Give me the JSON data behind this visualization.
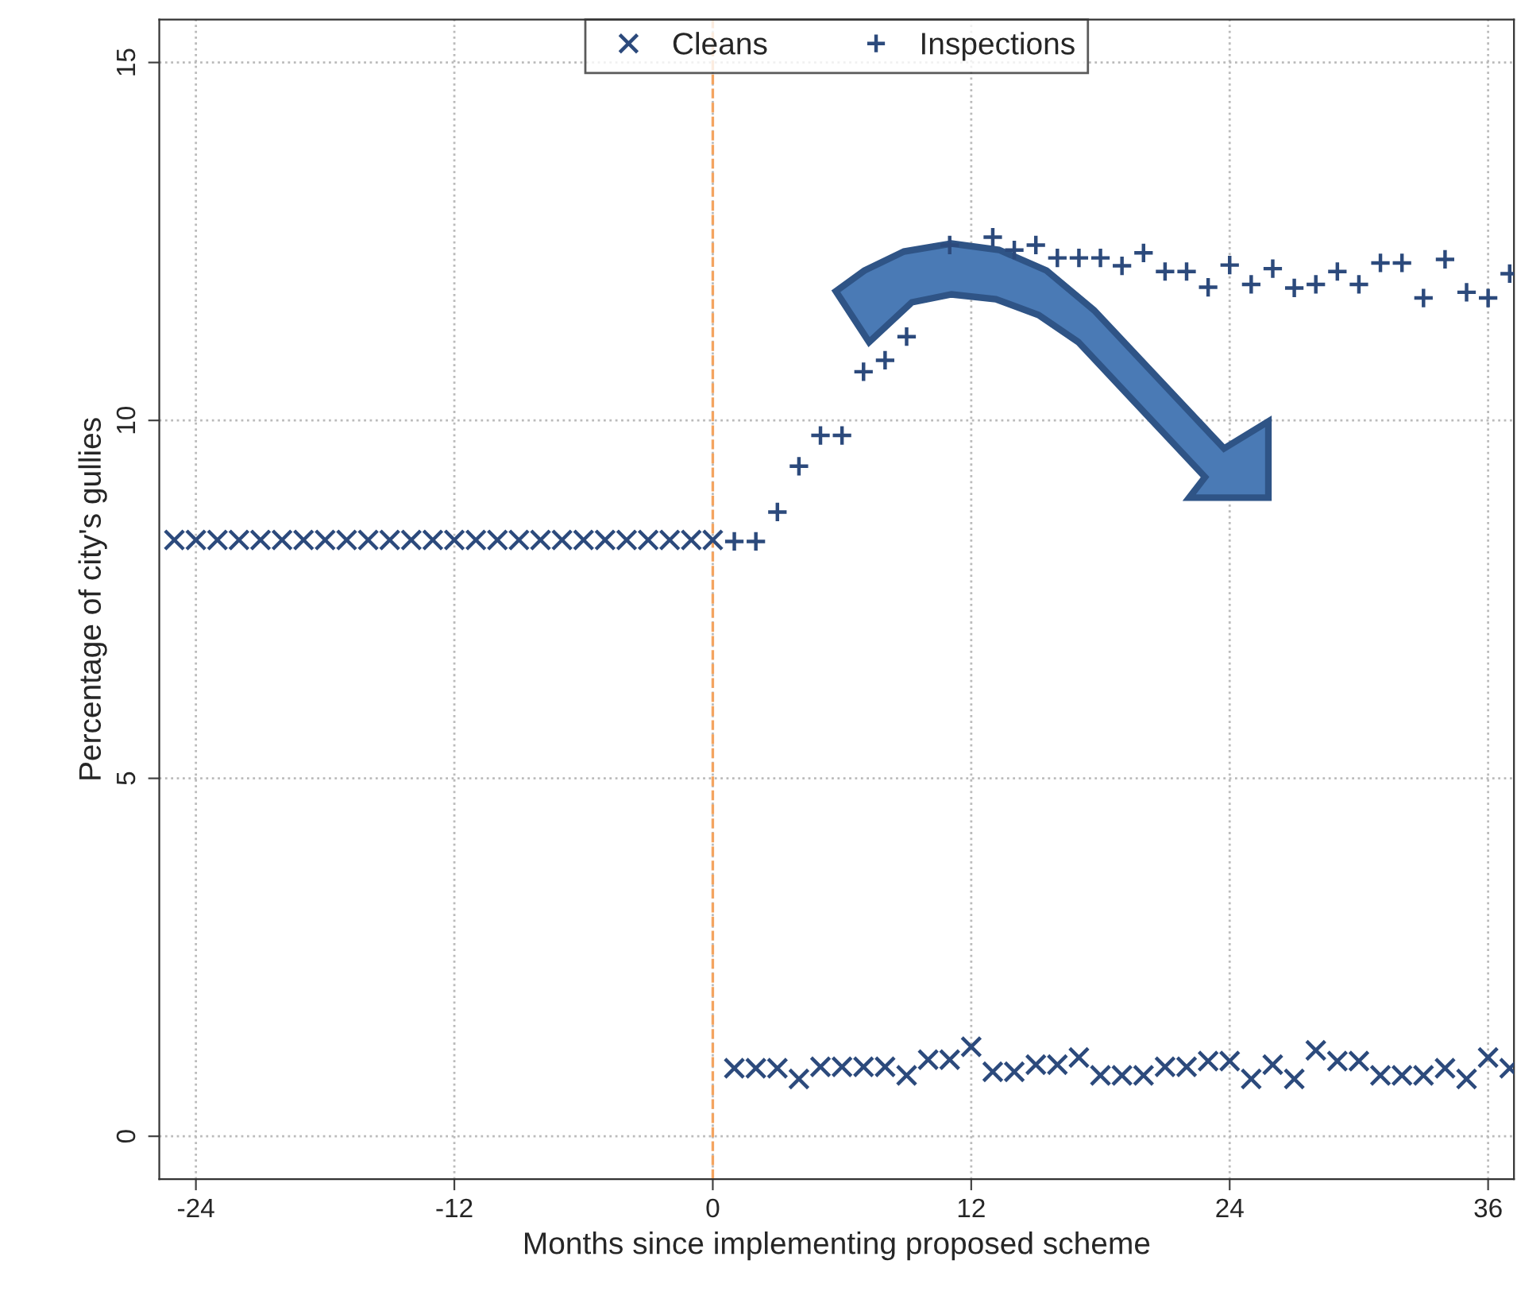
{
  "chart_data": {
    "type": "scatter",
    "xlabel": "Months since implementing proposed scheme",
    "ylabel": "Percentage of city's gullies",
    "xlim": [
      -25.7,
      37.2
    ],
    "ylim": [
      -0.6,
      15.6
    ],
    "xticks": [
      -24,
      -12,
      0,
      12,
      24,
      36
    ],
    "yticks": [
      0,
      5,
      10,
      15
    ],
    "grid": true,
    "legend": "top",
    "ref_lines": [
      {
        "axis": "x",
        "value": 0,
        "color": "#f4a460",
        "line_style": "dashed"
      }
    ],
    "series": [
      {
        "name": "Cleans",
        "color": "#2c4a7c",
        "marker": "cross",
        "x": [
          -25,
          -24,
          -23,
          -22,
          -21,
          -20,
          -19,
          -18,
          -17,
          -16,
          -15,
          -14,
          -13,
          -12,
          -11,
          -10,
          -9,
          -8,
          -7,
          -6,
          -5,
          -4,
          -3,
          -2,
          -1,
          0,
          1,
          2,
          3,
          4,
          5,
          6,
          7,
          8,
          9,
          10,
          11,
          12,
          13,
          14,
          15,
          16,
          17,
          18,
          19,
          20,
          21,
          22,
          23,
          24,
          25,
          26,
          27,
          28,
          29,
          30,
          31,
          32,
          33,
          34,
          35,
          36,
          37
        ],
        "values": [
          8.33,
          8.33,
          8.33,
          8.33,
          8.33,
          8.33,
          8.33,
          8.33,
          8.33,
          8.33,
          8.33,
          8.33,
          8.33,
          8.33,
          8.33,
          8.33,
          8.33,
          8.33,
          8.33,
          8.33,
          8.33,
          8.33,
          8.33,
          8.33,
          8.33,
          8.33,
          0.95,
          0.95,
          0.95,
          0.8,
          0.97,
          0.97,
          0.97,
          0.97,
          0.85,
          1.07,
          1.07,
          1.25,
          0.9,
          0.9,
          1.0,
          1.0,
          1.1,
          0.85,
          0.85,
          0.85,
          0.97,
          0.97,
          1.05,
          1.05,
          0.8,
          1.0,
          0.8,
          1.2,
          1.05,
          1.05,
          0.85,
          0.85,
          0.85,
          0.95,
          0.8,
          1.1,
          0.95
        ]
      },
      {
        "name": "Inspections",
        "color": "#2c4a7c",
        "marker": "plus",
        "x": [
          1,
          2,
          3,
          4,
          5,
          6,
          7,
          8,
          9,
          10,
          11,
          12,
          13,
          14,
          15,
          16,
          17,
          18,
          19,
          20,
          21,
          22,
          23,
          24,
          25,
          26,
          27,
          28,
          29,
          30,
          31,
          32,
          33,
          34,
          35,
          36,
          37
        ],
        "values": [
          8.31,
          8.31,
          8.72,
          9.36,
          9.79,
          9.79,
          10.68,
          10.84,
          11.17,
          null,
          12.45,
          null,
          12.56,
          12.38,
          12.45,
          12.27,
          12.27,
          12.27,
          12.16,
          12.34,
          12.08,
          12.08,
          11.86,
          12.17,
          11.9,
          12.12,
          11.85,
          11.9,
          12.08,
          11.9,
          12.2,
          12.2,
          11.71,
          12.25,
          11.79,
          11.71,
          12.05
        ]
      }
    ]
  }
}
